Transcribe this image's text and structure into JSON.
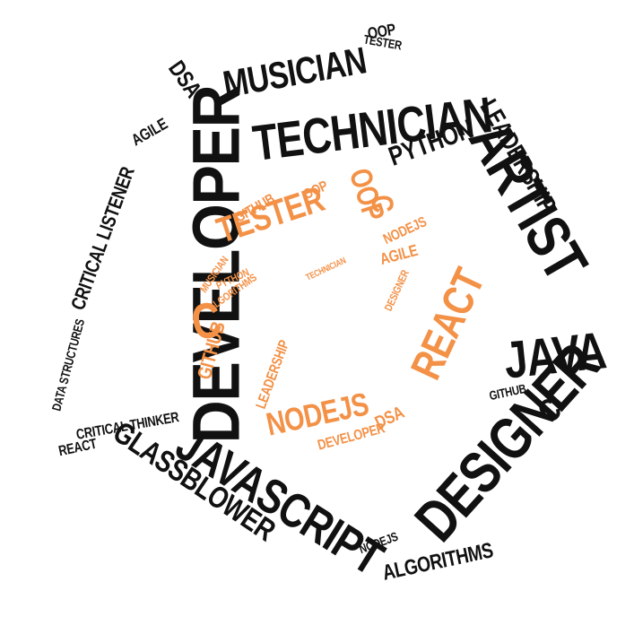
{
  "palette": {
    "outer": "#111111",
    "inner": "#f39147",
    "background": "#ffffff"
  },
  "words": [
    "DEVELOPER",
    "TECHNICIAN",
    "ARTIST",
    "MUSICIAN",
    "DESIGNER",
    "JAVASCRIPT",
    "GLASSBLOWER",
    "JAVA",
    "LEADERSHIP",
    "PYTHON",
    "CRITICAL LISTENER",
    "CRITICAL THINKER",
    "DATA STRUCTURES",
    "ALGORITHMS",
    "AGILE",
    "REACT",
    "TESTER",
    "OOP",
    "DSA",
    "NODEJS",
    "GITHUB",
    "C",
    "TESTER",
    "OOP",
    "C",
    "REACT",
    "NODEJS",
    "C",
    "GITHUB",
    "AGILE",
    "DSA",
    "DEVELOPER",
    "DESIGNER",
    "MUSICIAN",
    "PYTHON",
    "ALGORITHMS",
    "TECHNICIAN",
    "LEADERSHIP",
    "NODEJS",
    "OOP",
    "GITHUB"
  ]
}
